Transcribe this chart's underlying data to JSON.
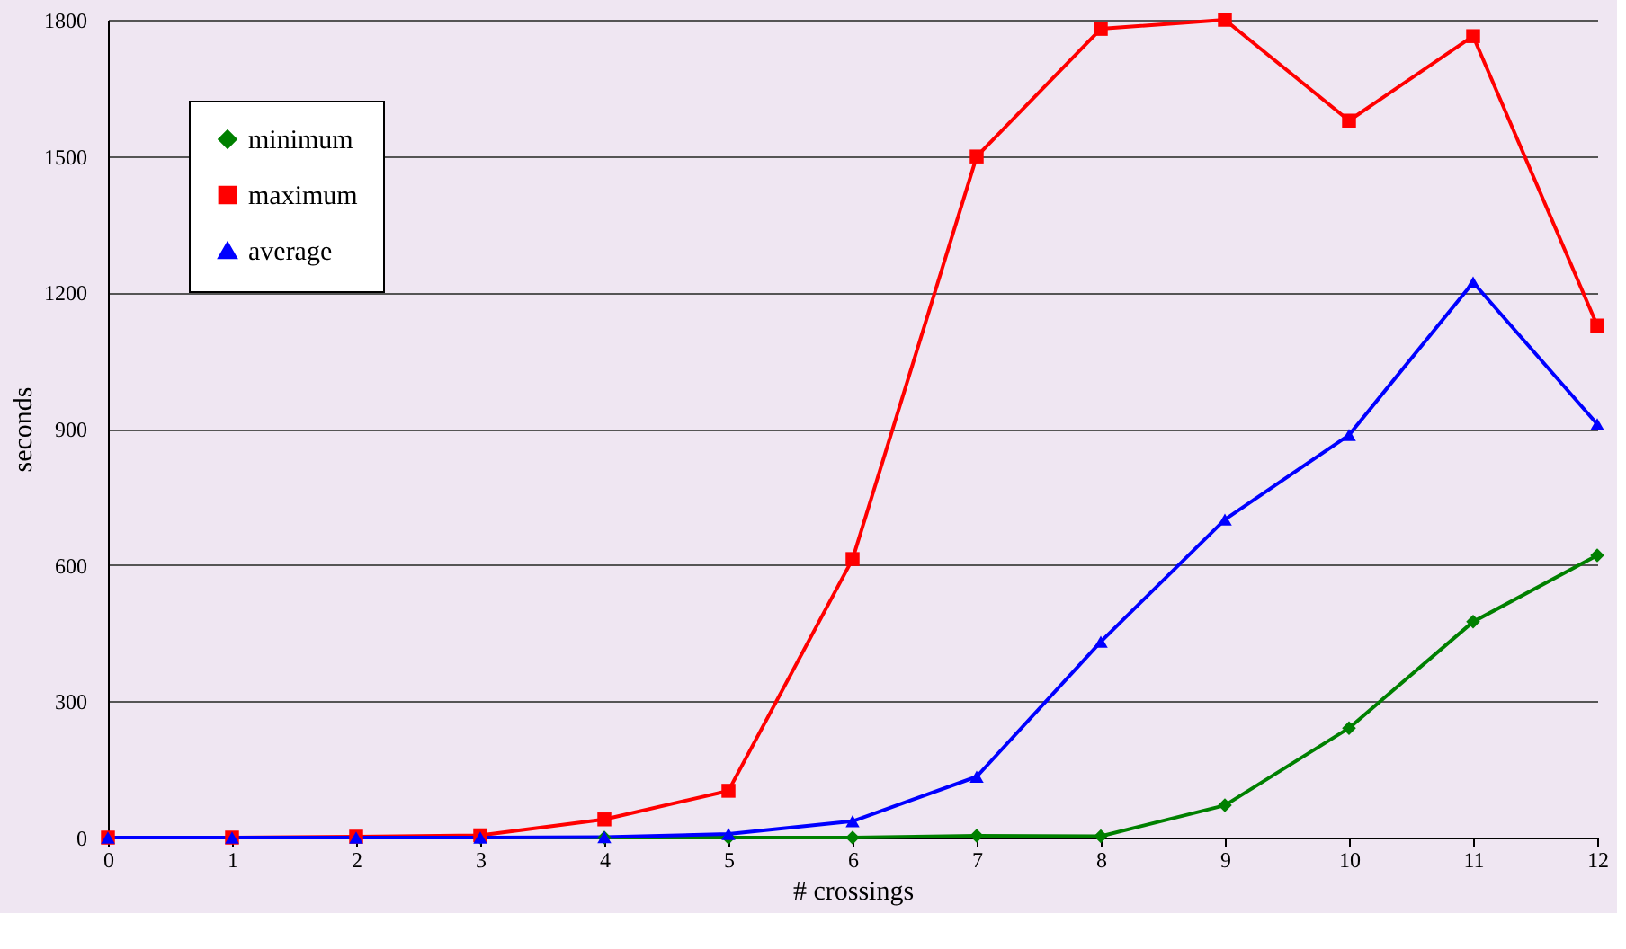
{
  "chart_data": {
    "type": "line",
    "xlabel": "# crossings",
    "ylabel": "seconds",
    "x": [
      0,
      1,
      2,
      3,
      4,
      5,
      6,
      7,
      8,
      9,
      10,
      11,
      12
    ],
    "xlim": [
      0,
      12
    ],
    "xticks": [
      0,
      1,
      2,
      3,
      4,
      5,
      6,
      7,
      8,
      9,
      10,
      11,
      12
    ],
    "ylim": [
      0,
      1800
    ],
    "yticks": [
      0,
      300,
      600,
      900,
      1200,
      1500,
      1800
    ],
    "grid": "y",
    "legend": "top left",
    "series": [
      {
        "name": "minimum",
        "color": "#008000",
        "marker": "diamond",
        "values": [
          null,
          null,
          null,
          0,
          0,
          0,
          0,
          4,
          3,
          71,
          241,
          475,
          621
        ]
      },
      {
        "name": "maximum",
        "color": "#ff0000",
        "marker": "square",
        "values": [
          0,
          0,
          2,
          5,
          40,
          103,
          613,
          1499,
          1780,
          1800,
          1578,
          1764,
          1127
        ]
      },
      {
        "name": "average",
        "color": "#0000ff",
        "marker": "triangle",
        "values": [
          0,
          0,
          0,
          0,
          1,
          8,
          36,
          134,
          431,
          700,
          886,
          1222,
          910
        ]
      }
    ]
  }
}
